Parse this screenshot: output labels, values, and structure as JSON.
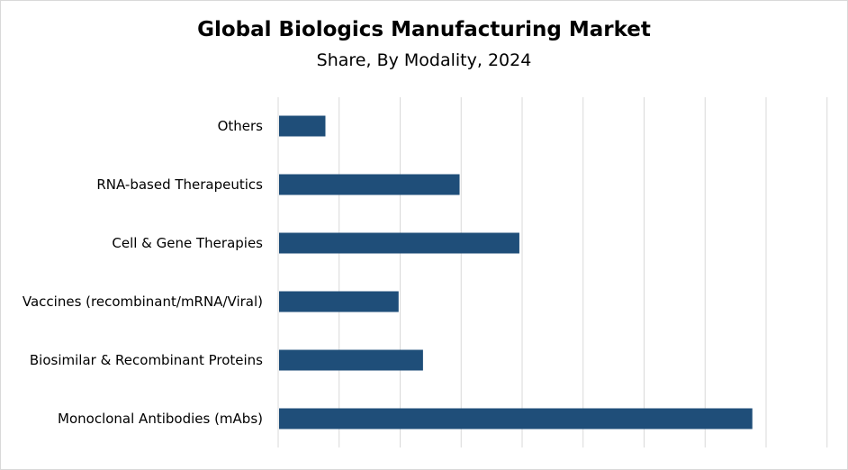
{
  "chart_data": {
    "type": "bar",
    "orientation": "horizontal",
    "title": "Global Biologics Manufacturing Market",
    "subtitle": "Share, By Modality, 2024",
    "categories": [
      "Monoclonal Antibodies (mAbs)",
      "Biosimilar & Recombinant Proteins",
      "Vaccines (recombinant/mRNA/Viral)",
      "Cell & Gene Therapies",
      "RNA-based Therapeutics",
      "Others"
    ],
    "values": [
      38.8,
      11.8,
      9.8,
      19.7,
      14.8,
      3.8
    ],
    "xlim": [
      0,
      45
    ],
    "grid": true,
    "legend": "none",
    "bar_color": "#1f4e79"
  }
}
